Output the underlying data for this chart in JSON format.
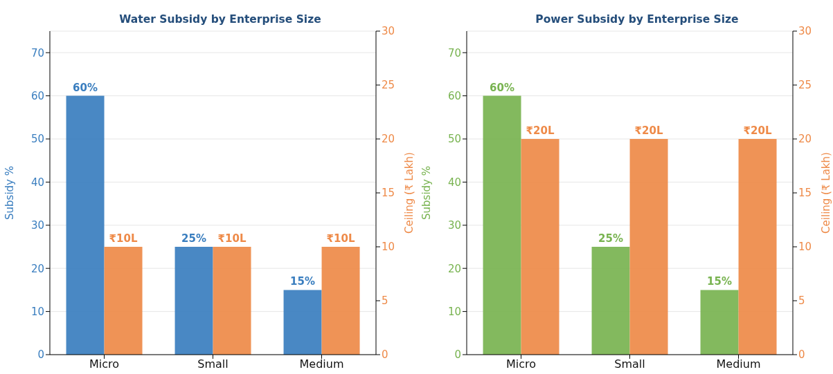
{
  "chart_data": [
    {
      "type": "bar",
      "title": "Water Subsidy by Enterprise Size",
      "categories": [
        "Micro",
        "Small",
        "Medium"
      ],
      "ylabel": "Subsidy %",
      "y2label": "Ceiling (₹ Lakh)",
      "ylim": [
        0,
        75
      ],
      "yticks": [
        0,
        10,
        20,
        30,
        40,
        50,
        60,
        70
      ],
      "y2lim": [
        0,
        30
      ],
      "y2ticks": [
        0,
        5,
        10,
        15,
        20,
        25,
        30
      ],
      "grid": "y",
      "series": [
        {
          "color": "#3a7ebf",
          "values": [
            60,
            25,
            15
          ],
          "value_labels": [
            "60%",
            "25%",
            "15%"
          ]
        },
        {
          "color": "#ee8a48",
          "values": [
            10,
            10,
            10
          ],
          "axis": "y2",
          "value_labels": [
            "₹10L",
            "₹10L",
            "₹10L"
          ]
        }
      ]
    },
    {
      "type": "bar",
      "title": "Power Subsidy by Enterprise Size",
      "categories": [
        "Micro",
        "Small",
        "Medium"
      ],
      "ylabel": "Subsidy %",
      "y2label": "Ceiling (₹ Lakh)",
      "ylim": [
        0,
        75
      ],
      "yticks": [
        0,
        10,
        20,
        30,
        40,
        50,
        60,
        70
      ],
      "y2lim": [
        0,
        30
      ],
      "y2ticks": [
        0,
        5,
        10,
        15,
        20,
        25,
        30
      ],
      "grid": "y",
      "series": [
        {
          "color": "#78b350",
          "values": [
            60,
            25,
            15
          ],
          "value_labels": [
            "60%",
            "25%",
            "15%"
          ]
        },
        {
          "color": "#ee8a48",
          "values": [
            20,
            20,
            20
          ],
          "axis": "y2",
          "value_labels": [
            "₹20L",
            "₹20L",
            "₹20L"
          ]
        }
      ]
    }
  ]
}
